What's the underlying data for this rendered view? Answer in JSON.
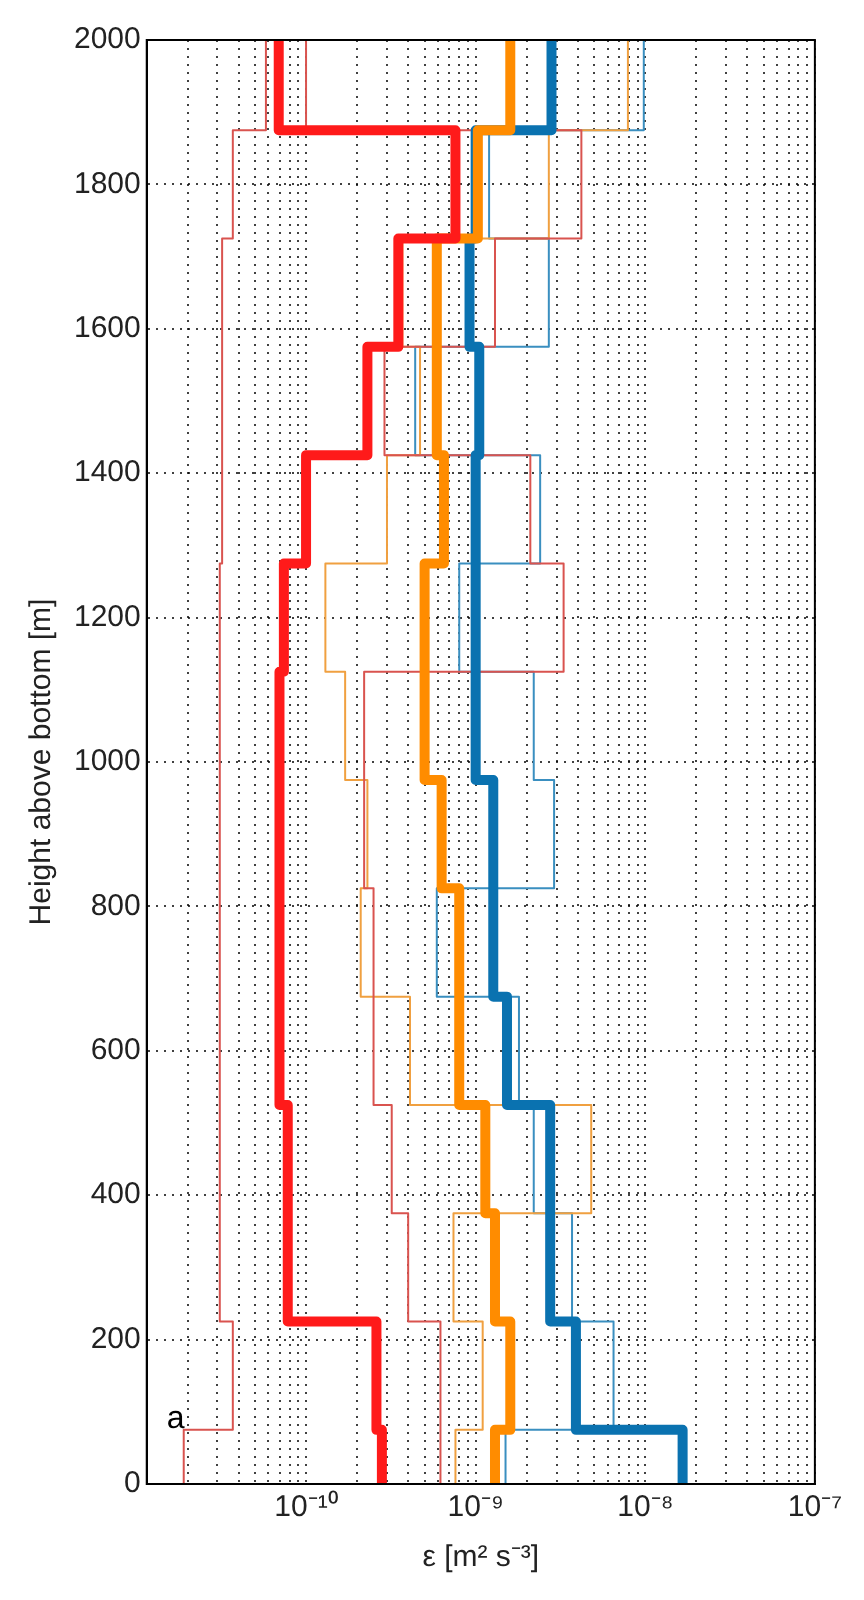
{
  "chart_data": {
    "type": "line",
    "xlabel": "ε [m² s⁻³]",
    "ylabel": "Height above bottom [m]",
    "log": "x",
    "grid": true,
    "legend": false,
    "marker": "none",
    "line_style": "solid",
    "xlim": [
      1.15e-11,
      1e-07
    ],
    "ylim": [
      0,
      2000
    ],
    "xticks": [
      {
        "value": 2e-11,
        "label": null
      },
      {
        "value": 3e-11,
        "label": null
      },
      {
        "value": 4e-11,
        "label": null
      },
      {
        "value": 5e-11,
        "label": null
      },
      {
        "value": 6e-11,
        "label": null
      },
      {
        "value": 7e-11,
        "label": null
      },
      {
        "value": 8e-11,
        "label": null
      },
      {
        "value": 9e-11,
        "label": null
      },
      {
        "value": 1e-10,
        "label": "10⁻¹⁰"
      },
      {
        "value": 2e-10,
        "label": null
      },
      {
        "value": 3e-10,
        "label": null
      },
      {
        "value": 4e-10,
        "label": null
      },
      {
        "value": 5e-10,
        "label": null
      },
      {
        "value": 6e-10,
        "label": null
      },
      {
        "value": 7e-10,
        "label": null
      },
      {
        "value": 8e-10,
        "label": null
      },
      {
        "value": 9e-10,
        "label": null
      },
      {
        "value": 1e-09,
        "label": "10⁻⁹"
      },
      {
        "value": 2e-09,
        "label": null
      },
      {
        "value": 3e-09,
        "label": null
      },
      {
        "value": 4e-09,
        "label": null
      },
      {
        "value": 5e-09,
        "label": null
      },
      {
        "value": 6e-09,
        "label": null
      },
      {
        "value": 7e-09,
        "label": null
      },
      {
        "value": 8e-09,
        "label": null
      },
      {
        "value": 9e-09,
        "label": null
      },
      {
        "value": 1e-08,
        "label": "10⁻⁸"
      },
      {
        "value": 2e-08,
        "label": null
      },
      {
        "value": 3e-08,
        "label": null
      },
      {
        "value": 4e-08,
        "label": null
      },
      {
        "value": 5e-08,
        "label": null
      },
      {
        "value": 6e-08,
        "label": null
      },
      {
        "value": 7e-08,
        "label": null
      },
      {
        "value": 8e-08,
        "label": null
      },
      {
        "value": 9e-08,
        "label": null
      },
      {
        "value": 1e-07,
        "label": "10⁻⁷"
      }
    ],
    "yticks": [
      0,
      200,
      400,
      600,
      800,
      1000,
      1200,
      1400,
      1600,
      1800,
      2000
    ],
    "annotations": [
      "a"
    ],
    "series": [
      {
        "color": "#ff1a1a",
        "x": [
          2.8e-10,
          2.8e-10,
          2.6e-10,
          2.6e-10,
          7.8e-11,
          7.8e-11,
          7.8e-11,
          7.8e-11,
          7e-11,
          7e-11,
          7e-11,
          7e-11,
          7e-11,
          7e-11,
          6.9e-11,
          6.9e-11,
          7.4e-11,
          7.4e-11,
          1e-10,
          1e-10,
          2.3e-10,
          2.3e-10,
          3.5e-10,
          3.5e-10,
          7.6e-10,
          7.6e-10,
          6.9e-11,
          6.9e-11
        ],
        "values": [
          0,
          75,
          75,
          225,
          225,
          375,
          375,
          525,
          525,
          675,
          675,
          825,
          825,
          975,
          975,
          1125,
          1125,
          1275,
          1275,
          1425,
          1425,
          1575,
          1575,
          1725,
          1725,
          1875,
          1875,
          2000
        ]
      },
      {
        "color": "#ff8c00",
        "x": [
          1.3e-09,
          1.3e-09,
          1.6e-09,
          1.6e-09,
          1.3e-09,
          1.3e-09,
          1.14e-09,
          1.14e-09,
          8e-10,
          8e-10,
          8e-10,
          8e-10,
          6.3e-10,
          6.3e-10,
          5e-10,
          5e-10,
          5e-10,
          5e-10,
          6.5e-10,
          6.5e-10,
          5.9e-10,
          5.9e-10,
          5.9e-10,
          5.9e-10,
          1.03e-09,
          1.03e-09,
          1.6e-09,
          1.6e-09
        ],
        "values": [
          0,
          75,
          75,
          225,
          225,
          375,
          375,
          525,
          525,
          675,
          675,
          825,
          825,
          975,
          975,
          1125,
          1125,
          1275,
          1275,
          1425,
          1425,
          1575,
          1575,
          1725,
          1725,
          1875,
          1875,
          2000
        ]
      },
      {
        "color": "#0a72b0",
        "x": [
          1.66e-08,
          1.66e-08,
          3.9e-09,
          3.9e-09,
          2.75e-09,
          2.75e-09,
          2.75e-09,
          2.75e-09,
          1.53e-09,
          1.53e-09,
          1.27e-09,
          1.27e-09,
          1.27e-09,
          1.27e-09,
          1e-09,
          1e-09,
          1e-09,
          1e-09,
          1e-09,
          1e-09,
          1.05e-09,
          1.05e-09,
          9.2e-10,
          9.2e-10,
          1e-09,
          1e-09,
          2.8e-09,
          2.8e-09
        ],
        "values": [
          0,
          75,
          75,
          225,
          225,
          375,
          375,
          525,
          525,
          675,
          675,
          825,
          825,
          975,
          975,
          1125,
          1125,
          1275,
          1275,
          1425,
          1425,
          1575,
          1575,
          1725,
          1725,
          1875,
          1875,
          2000
        ]
      },
      {
        "color": "#d9534f",
        "x": [
          1.9e-11,
          1.9e-11,
          3.7e-11,
          3.7e-11,
          3.1e-11,
          3.1e-11,
          3.1e-11,
          3.1e-11,
          3.1e-11,
          3.1e-11,
          3.1e-11,
          3.1e-11,
          3.1e-11,
          3.1e-11,
          3.1e-11,
          3.1e-11,
          3.1e-11,
          3.1e-11,
          3.2e-11,
          3.2e-11,
          3.2e-11,
          3.2e-11,
          3.2e-11,
          3.2e-11,
          3.7e-11,
          3.7e-11,
          5.8e-11,
          5.8e-11
        ],
        "values": [
          0,
          75,
          75,
          225,
          225,
          375,
          375,
          525,
          525,
          675,
          675,
          825,
          825,
          975,
          975,
          1125,
          1125,
          1275,
          1275,
          1425,
          1425,
          1575,
          1575,
          1725,
          1725,
          1875,
          1875,
          2000
        ]
      },
      {
        "color": "#d9534f",
        "x": [
          6.2e-10,
          6.2e-10,
          6.2e-10,
          6.2e-10,
          4e-10,
          4e-10,
          3.2e-10,
          3.2e-10,
          2.5e-10,
          2.5e-10,
          2.5e-10,
          2.5e-10,
          2.2e-10,
          2.2e-10,
          2.2e-10,
          2.2e-10,
          3.3e-09,
          3.3e-09,
          2.1e-09,
          2.1e-09,
          2.9e-10,
          2.9e-10,
          1.3e-09,
          1.3e-09,
          4.2e-09,
          4.2e-09,
          1e-10,
          1e-10
        ],
        "values": [
          0,
          75,
          75,
          225,
          225,
          375,
          375,
          525,
          525,
          675,
          675,
          825,
          825,
          975,
          975,
          1125,
          1125,
          1275,
          1275,
          1425,
          1425,
          1575,
          1575,
          1725,
          1725,
          1875,
          1875,
          2000
        ]
      },
      {
        "color": "#f0a040",
        "x": [
          7.6e-10,
          7.6e-10,
          1.1e-09,
          1.1e-09,
          7.4e-10,
          7.4e-10,
          4.8e-09,
          4.8e-09,
          4.1e-10,
          4.1e-10,
          2.1e-10,
          2.1e-10,
          2.3e-10,
          2.3e-10,
          1.7e-10,
          1.7e-10,
          1.3e-10,
          1.3e-10,
          3e-10,
          3e-10,
          4.7e-10,
          4.7e-10,
          3.7e-10,
          3.7e-10,
          2.7e-09,
          2.7e-09,
          7.9e-09,
          7.9e-09
        ],
        "values": [
          0,
          75,
          75,
          225,
          225,
          375,
          375,
          525,
          525,
          675,
          675,
          825,
          825,
          975,
          975,
          1125,
          1125,
          1275,
          1275,
          1425,
          1425,
          1575,
          1575,
          1725,
          1725,
          1875,
          1875,
          2000
        ]
      },
      {
        "color": "#3a8fc0",
        "x": [
          1.5e-09,
          1.5e-09,
          6.5e-09,
          6.5e-09,
          3.7e-09,
          3.7e-09,
          2.2e-09,
          2.2e-09,
          1.8e-09,
          1.8e-09,
          5.9e-10,
          5.9e-10,
          2.9e-09,
          2.9e-09,
          2.2e-09,
          2.2e-09,
          8e-10,
          8e-10,
          2.4e-09,
          2.4e-09,
          4.4e-10,
          4.4e-10,
          2.7e-09,
          2.7e-09,
          1.2e-09,
          1.2e-09,
          9.8e-09,
          9.8e-09
        ],
        "values": [
          0,
          75,
          75,
          225,
          225,
          375,
          375,
          525,
          525,
          675,
          675,
          825,
          825,
          975,
          975,
          1125,
          1125,
          1275,
          1275,
          1425,
          1425,
          1575,
          1575,
          1725,
          1725,
          1875,
          1875,
          2000
        ]
      }
    ]
  }
}
